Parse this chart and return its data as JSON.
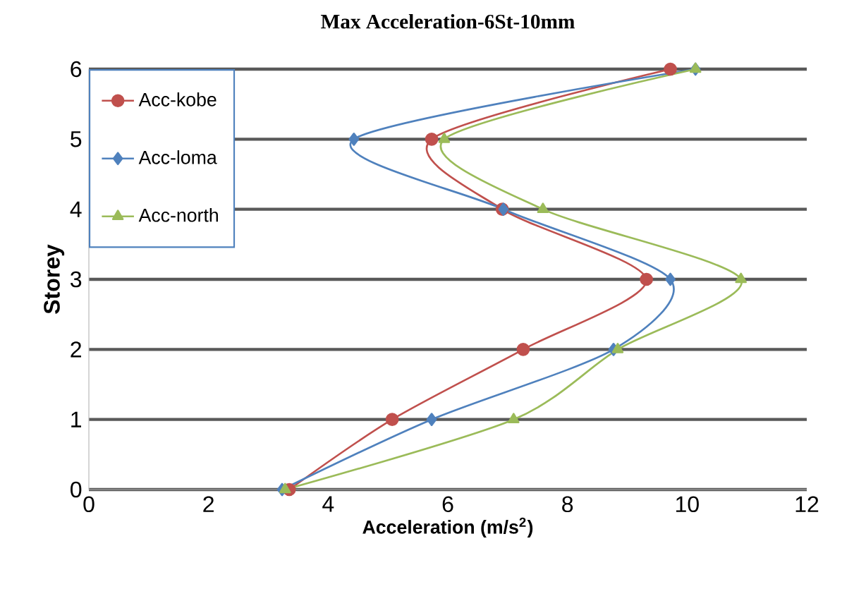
{
  "chart_data": {
    "type": "line",
    "title": "Max Acceleration-6St-10mm",
    "xlabel": "Acceleration (m/s$^{2}$)",
    "ylabel": "Storey",
    "xlim": [
      0,
      12
    ],
    "ylim": [
      0,
      6
    ],
    "xticks": [
      0,
      2,
      4,
      6,
      8,
      10,
      12
    ],
    "yticks": [
      0,
      1,
      2,
      3,
      4,
      5,
      6
    ],
    "grid": "y",
    "legend": "top left",
    "series": [
      {
        "name": "Acc-kobe",
        "color": "#c0504d",
        "marker": "circle",
        "x": [
          3.35,
          5.07,
          7.26,
          9.32,
          6.91,
          5.73,
          9.72
        ],
        "values": [
          0,
          1,
          2,
          3,
          4,
          5,
          6
        ]
      },
      {
        "name": "Acc-loma",
        "color": "#4f81bd",
        "marker": "diamond",
        "x": [
          3.23,
          5.73,
          8.77,
          9.72,
          6.93,
          4.43,
          10.14
        ],
        "values": [
          0,
          1,
          2,
          3,
          4,
          5,
          6
        ]
      },
      {
        "name": "Acc-north",
        "color": "#9bbb59",
        "marker": "triangle",
        "x": [
          3.28,
          7.1,
          8.84,
          10.9,
          7.59,
          5.94,
          10.14
        ],
        "values": [
          0,
          1,
          2,
          3,
          4,
          5,
          6
        ]
      }
    ]
  }
}
